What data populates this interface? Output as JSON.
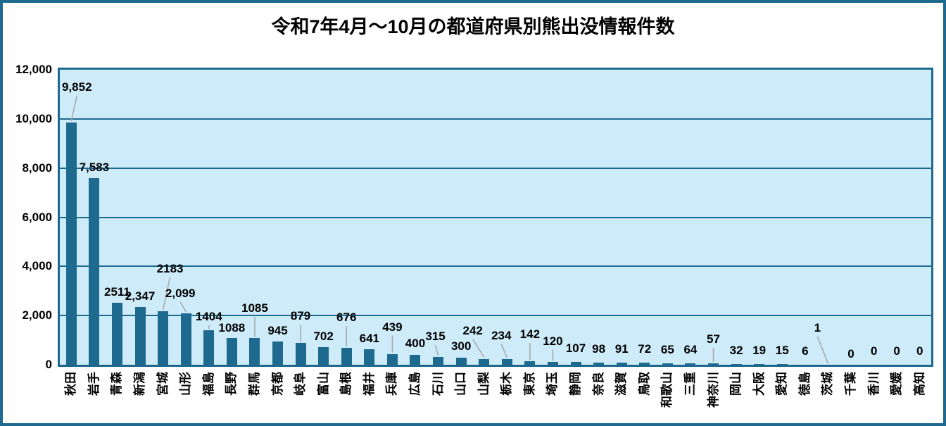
{
  "title": "令和7年4月〜10月の都道府県別熊出没情報件数",
  "colors": {
    "bar": "#1D6A8E",
    "grid": "#1D6A8E",
    "plot_background": "#CDEBF9",
    "frame_border": "#1D6A8E",
    "leader_line": "#A6A6A6",
    "text": "#000000",
    "page_background": "#FFFFFF"
  },
  "chart_data": {
    "type": "bar",
    "title": "令和7年4月〜10月の都道府県別熊出没情報件数",
    "xlabel": "",
    "ylabel": "",
    "ylim": [
      0,
      12000
    ],
    "ytick_interval": 2000,
    "ytick_labels": [
      "0",
      "2,000",
      "4,000",
      "6,000",
      "8,000",
      "10,000",
      "12,000"
    ],
    "grid": "horizontal",
    "legend": "none",
    "categories": [
      "秋田",
      "岩手",
      "青森",
      "新潟",
      "宮城",
      "山形",
      "福島",
      "長野",
      "群馬",
      "京都",
      "岐阜",
      "富山",
      "島根",
      "福井",
      "兵庫",
      "広島",
      "石川",
      "山口",
      "山梨",
      "栃木",
      "東京",
      "埼玉",
      "静岡",
      "奈良",
      "滋賀",
      "鳥取",
      "和歌山",
      "三重",
      "神奈川",
      "岡山",
      "大阪",
      "愛知",
      "徳島",
      "茨城",
      "千葉",
      "香川",
      "愛媛",
      "高知"
    ],
    "values": [
      9852,
      7583,
      2511,
      2347,
      2183,
      2099,
      1404,
      1088,
      1085,
      945,
      879,
      702,
      676,
      641,
      439,
      400,
      315,
      300,
      242,
      234,
      142,
      120,
      107,
      98,
      91,
      72,
      65,
      64,
      57,
      32,
      19,
      15,
      6,
      1,
      0,
      0,
      0,
      0
    ],
    "value_labels": [
      "9,852",
      "7,583",
      "2511",
      "2,347",
      "2183",
      "2,099",
      "1404",
      "1088",
      "1085",
      "945",
      "879",
      "702",
      "676",
      "641",
      "439",
      "400",
      "315",
      "300",
      "242",
      "234",
      "142",
      "120",
      "107",
      "98",
      "91",
      "72",
      "65",
      "64",
      "57",
      "32",
      "19",
      "15",
      "6",
      "1",
      "0",
      "0",
      "0",
      "0"
    ],
    "label_layout": {
      "gap": [
        40,
        5,
        5,
        5,
        50,
        18,
        9,
        4,
        32,
        5,
        28,
        5,
        33,
        5,
        28,
        6,
        19,
        6,
        30,
        23,
        28,
        19,
        9,
        9,
        9,
        9,
        9,
        9,
        24,
        9,
        9,
        9,
        9,
        42,
        5,
        9,
        9,
        9
      ],
      "leader": [
        1,
        0,
        0,
        0,
        1,
        1,
        1,
        0,
        1,
        0,
        1,
        0,
        1,
        0,
        1,
        0,
        1,
        0,
        1,
        1,
        1,
        1,
        0,
        0,
        0,
        0,
        0,
        0,
        1,
        0,
        0,
        0,
        0,
        1,
        0,
        0,
        0,
        0
      ],
      "dx": [
        8,
        0,
        0,
        0,
        10,
        -8,
        0,
        0,
        0,
        0,
        0,
        0,
        0,
        0,
        0,
        0,
        -4,
        0,
        -16,
        -8,
        0,
        0,
        0,
        0,
        0,
        0,
        0,
        0,
        0,
        0,
        0,
        0,
        0,
        -15,
        0,
        0,
        0,
        0
      ]
    }
  }
}
